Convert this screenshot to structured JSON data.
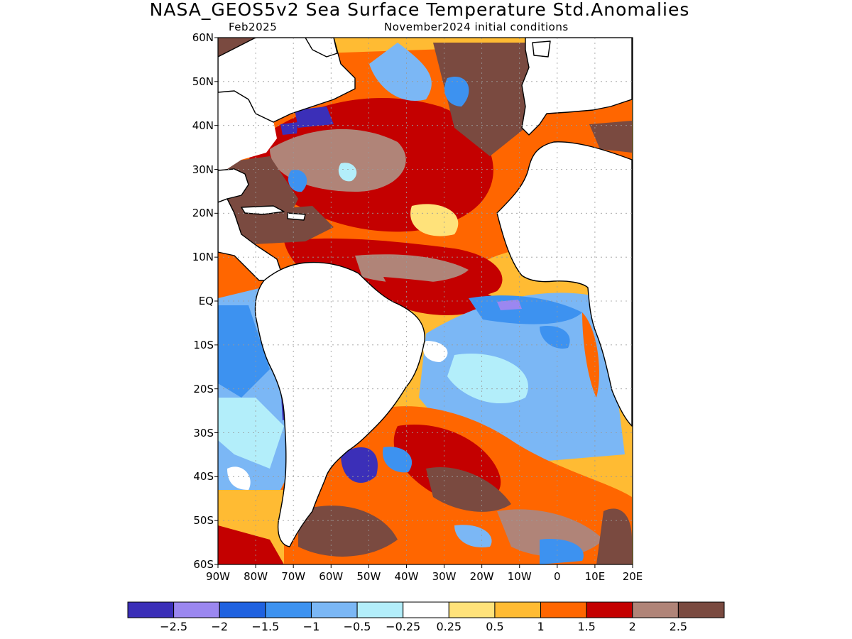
{
  "title": "NASA_GEOS5v2 Sea Surface Temperature Std.Anomalies",
  "valid_month": "Feb2025",
  "init_label": "November2024 initial conditions",
  "lat_labels": [
    "60N",
    "50N",
    "40N",
    "30N",
    "20N",
    "10N",
    "EQ",
    "10S",
    "20S",
    "30S",
    "40S",
    "50S",
    "60S"
  ],
  "lon_labels": [
    "90W",
    "80W",
    "70W",
    "60W",
    "50W",
    "40W",
    "30W",
    "20W",
    "10W",
    "0",
    "10E",
    "20E"
  ],
  "colorbar": {
    "colors": [
      "#3b2fb8",
      "#9b87f0",
      "#1f62e0",
      "#3d92f0",
      "#7bb7f5",
      "#b3eefa",
      "#ffffff",
      "#ffe27a",
      "#ffbb33",
      "#ff6600",
      "#c40000",
      "#b08478",
      "#7a4a40"
    ],
    "labels": [
      "−2.5",
      "−2",
      "−1.5",
      "−1",
      "−0.5",
      "−0.25",
      "0.25",
      "0.5",
      "1",
      "1.5",
      "2",
      "2.5"
    ]
  },
  "map": {
    "land_color": "#ffffff",
    "coast_color": "#000000",
    "grid_color": "#9a9a9a"
  }
}
